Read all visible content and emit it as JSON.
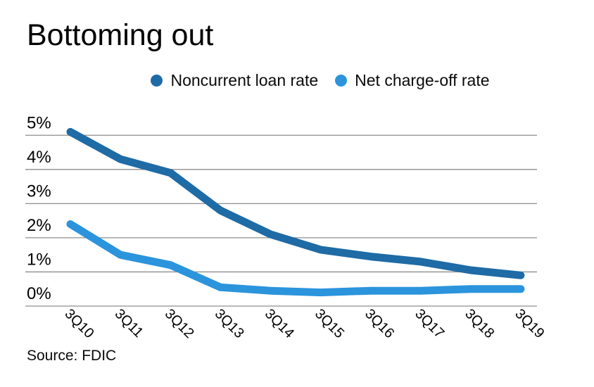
{
  "chart_data": {
    "type": "line",
    "title": "Bottoming out",
    "source": "Source: FDIC",
    "categories": [
      "3Q10",
      "3Q11",
      "3Q12",
      "3Q13",
      "3Q14",
      "3Q15",
      "3Q16",
      "3Q17",
      "3Q18",
      "3Q19"
    ],
    "series": [
      {
        "name": "Noncurrent loan rate",
        "color": "#1e6ba6",
        "values": [
          5.1,
          4.3,
          3.9,
          2.8,
          2.1,
          1.65,
          1.45,
          1.3,
          1.05,
          0.9
        ]
      },
      {
        "name": "Net charge-off rate",
        "color": "#2b94dd",
        "values": [
          2.4,
          1.5,
          1.2,
          0.55,
          0.45,
          0.4,
          0.45,
          0.45,
          0.5,
          0.5
        ]
      }
    ],
    "ylim": [
      0,
      5
    ],
    "ytick_labels": [
      "0%",
      "1%",
      "2%",
      "3%",
      "4%",
      "5%"
    ],
    "xlabel": "",
    "ylabel": "",
    "grid": true,
    "grid_color": "#8e8e8e",
    "text_color": "#000000",
    "legend_position": "top"
  }
}
